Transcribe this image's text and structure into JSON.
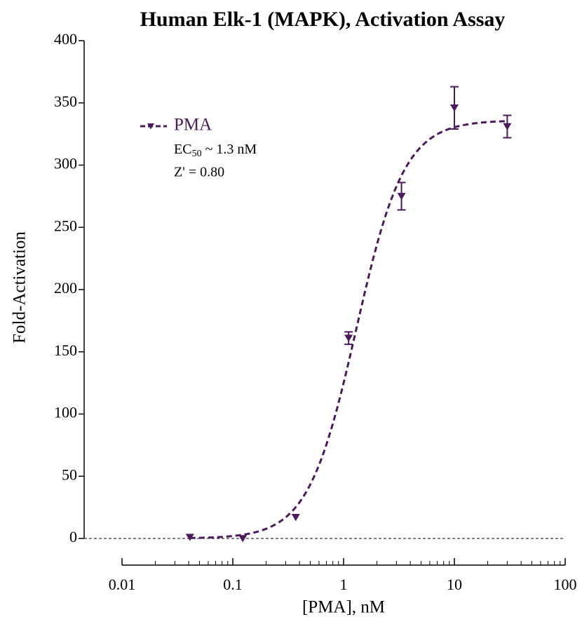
{
  "chart_data": {
    "type": "dose-response",
    "title": "Human Elk-1 (MAPK), Activation Assay",
    "x_label": "[PMA], nM",
    "y_label": "Fold-Activation",
    "x": [
      0.041,
      0.123,
      0.37,
      1.11,
      3.33,
      10,
      30
    ],
    "series": [
      {
        "name": "PMA",
        "color": "#4a1a5c",
        "values": [
          1,
          0,
          17,
          161,
          275,
          346,
          331
        ],
        "errors": [
          null,
          null,
          null,
          5,
          11,
          17,
          9
        ]
      }
    ],
    "fit": {
      "bottom": 0,
      "top": 336,
      "ec50": 1.3,
      "hill": 2
    },
    "annotation": {
      "main": "EC",
      "sub": "50",
      "tail": " ~ 1.3 nM",
      "z": "Z' = 0.80"
    },
    "xscale": "log",
    "xlim": [
      0.01,
      100
    ],
    "xticks": [
      0.01,
      0.1,
      1,
      10,
      100
    ],
    "xminor": [
      0.02,
      0.03,
      0.04,
      0.05,
      0.06,
      0.07,
      0.08,
      0.09,
      0.2,
      0.3,
      0.4,
      0.5,
      0.6,
      0.7,
      0.8,
      0.9,
      2,
      3,
      4,
      5,
      6,
      7,
      8,
      9,
      20,
      30,
      40,
      50,
      60,
      70,
      80,
      90
    ],
    "ylim": [
      0,
      400
    ],
    "yticks": [
      0,
      50,
      100,
      150,
      200,
      250,
      300,
      350,
      400
    ],
    "baseline": 0
  }
}
